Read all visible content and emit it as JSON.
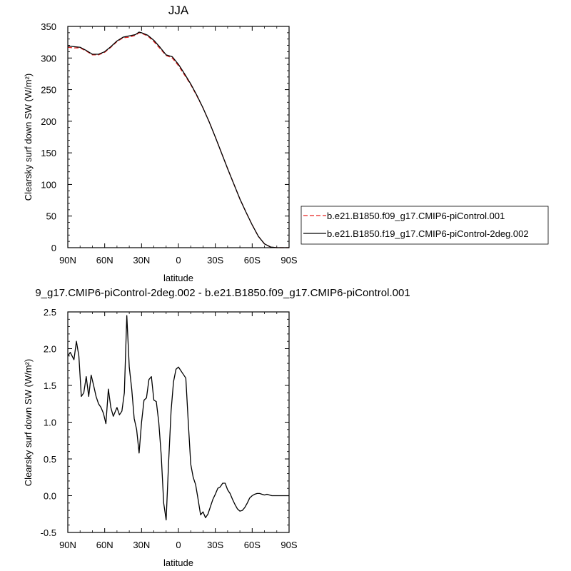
{
  "chart_data": [
    {
      "type": "line",
      "title": "JJA",
      "xlabel": "latitude",
      "ylabel": "Clearsky surf down SW (W/m²)",
      "xlim": [
        90,
        -90
      ],
      "ylim": [
        0,
        350
      ],
      "x_ticks": [
        90,
        60,
        30,
        0,
        -30,
        -60,
        -90
      ],
      "x_tick_labels": [
        "90N",
        "60N",
        "30N",
        "0",
        "30S",
        "60S",
        "90S"
      ],
      "y_ticks": [
        0,
        50,
        100,
        150,
        200,
        250,
        300,
        350
      ],
      "y_tick_labels": [
        "0",
        "50",
        "100",
        "150",
        "200",
        "250",
        "300",
        "350"
      ],
      "legend_position": "right",
      "series": [
        {
          "name": "b.e21.B1850.f09_g17.CMIP6-piControl.001",
          "color": "#e8211e",
          "dash": "dashed",
          "x": [
            90,
            85,
            80,
            75,
            70,
            65,
            60,
            55,
            50,
            45,
            40,
            35,
            32,
            30,
            25,
            20,
            15,
            10,
            5,
            0,
            -5,
            -10,
            -15,
            -20,
            -25,
            -30,
            -35,
            -40,
            -45,
            -50,
            -55,
            -60,
            -65,
            -70,
            -75,
            -80,
            -85,
            -90
          ],
          "y": [
            317,
            316,
            316,
            311,
            305,
            305,
            309,
            317,
            326,
            332,
            333,
            336,
            340,
            339,
            335,
            326,
            315,
            304,
            300,
            288,
            273,
            258,
            240,
            221,
            199,
            175,
            150,
            125,
            101,
            77,
            56,
            36,
            18,
            6,
            1,
            0,
            0,
            0
          ]
        },
        {
          "name": "b.e21.B1850.f19_g17.CMIP6-piControl-2deg.002",
          "color": "#000000",
          "dash": "solid",
          "x": [
            90,
            85,
            80,
            75,
            70,
            65,
            60,
            55,
            50,
            45,
            40,
            35,
            32,
            30,
            25,
            20,
            15,
            10,
            5,
            0,
            -5,
            -10,
            -15,
            -20,
            -25,
            -30,
            -35,
            -40,
            -45,
            -50,
            -55,
            -60,
            -65,
            -70,
            -75,
            -80,
            -85,
            -90
          ],
          "y": [
            319,
            318,
            317,
            312,
            306,
            306,
            310,
            318,
            327,
            333,
            335,
            337,
            341,
            340,
            336,
            328,
            317,
            305,
            302,
            290,
            275,
            259,
            241,
            221,
            199,
            175,
            150,
            125,
            101,
            77,
            56,
            36,
            18,
            6,
            1,
            0,
            0,
            0
          ]
        }
      ]
    },
    {
      "type": "line",
      "title": "9_g17.CMIP6-piControl-2deg.002 - b.e21.B1850.f09_g17.CMIP6-piControl.001",
      "xlabel": "latitude",
      "ylabel": "Clearsky surf down SW (W/m²)",
      "xlim": [
        90,
        -90
      ],
      "ylim": [
        -0.5,
        2.5
      ],
      "x_ticks": [
        90,
        60,
        30,
        0,
        -30,
        -60,
        -90
      ],
      "x_tick_labels": [
        "90N",
        "60N",
        "30N",
        "0",
        "30S",
        "60S",
        "90S"
      ],
      "y_ticks": [
        -0.5,
        0.0,
        0.5,
        1.0,
        1.5,
        2.0,
        2.5
      ],
      "y_tick_labels": [
        "-0.5",
        "0.0",
        "0.5",
        "1.0",
        "1.5",
        "2.0",
        "2.5"
      ],
      "series": [
        {
          "color": "#000000",
          "dash": "solid",
          "x": [
            90,
            88,
            85,
            83,
            81,
            79,
            77,
            75,
            73,
            71,
            69,
            67,
            65,
            63,
            61,
            59,
            57,
            55,
            53,
            50,
            48,
            46,
            44,
            42,
            40,
            38,
            36,
            34,
            32,
            30,
            28,
            26,
            24,
            22,
            20,
            18,
            16,
            14,
            12,
            10,
            8,
            6,
            4,
            2,
            0,
            -2,
            -4,
            -6,
            -8,
            -10,
            -12,
            -14,
            -16,
            -18,
            -20,
            -22,
            -24,
            -26,
            -28,
            -30,
            -32,
            -34,
            -36,
            -38,
            -40,
            -42,
            -44,
            -46,
            -48,
            -50,
            -52,
            -54,
            -56,
            -58,
            -60,
            -62,
            -64,
            -66,
            -68,
            -70,
            -72,
            -74,
            -76,
            -78,
            -80,
            -82,
            -84,
            -86,
            -88,
            -90
          ],
          "y": [
            1.9,
            1.95,
            1.85,
            2.1,
            1.9,
            1.35,
            1.4,
            1.62,
            1.35,
            1.64,
            1.5,
            1.35,
            1.25,
            1.2,
            1.12,
            0.98,
            1.45,
            1.2,
            1.08,
            1.2,
            1.1,
            1.15,
            1.4,
            2.45,
            1.75,
            1.45,
            1.05,
            0.9,
            0.58,
            1.0,
            1.3,
            1.33,
            1.58,
            1.62,
            1.3,
            1.28,
            1.0,
            0.55,
            -0.1,
            -0.33,
            0.45,
            1.15,
            1.55,
            1.72,
            1.75,
            1.7,
            1.65,
            1.6,
            1.0,
            0.43,
            0.25,
            0.15,
            -0.05,
            -0.26,
            -0.22,
            -0.3,
            -0.25,
            -0.15,
            -0.05,
            0.02,
            0.1,
            0.12,
            0.17,
            0.17,
            0.08,
            0.03,
            -0.05,
            -0.12,
            -0.18,
            -0.21,
            -0.2,
            -0.16,
            -0.1,
            -0.03,
            0.0,
            0.02,
            0.03,
            0.03,
            0.02,
            0.01,
            0.02,
            0.01,
            0.0,
            0.0,
            0.0,
            0.0,
            0.0,
            0.0,
            0.0,
            0.0
          ]
        }
      ]
    }
  ]
}
